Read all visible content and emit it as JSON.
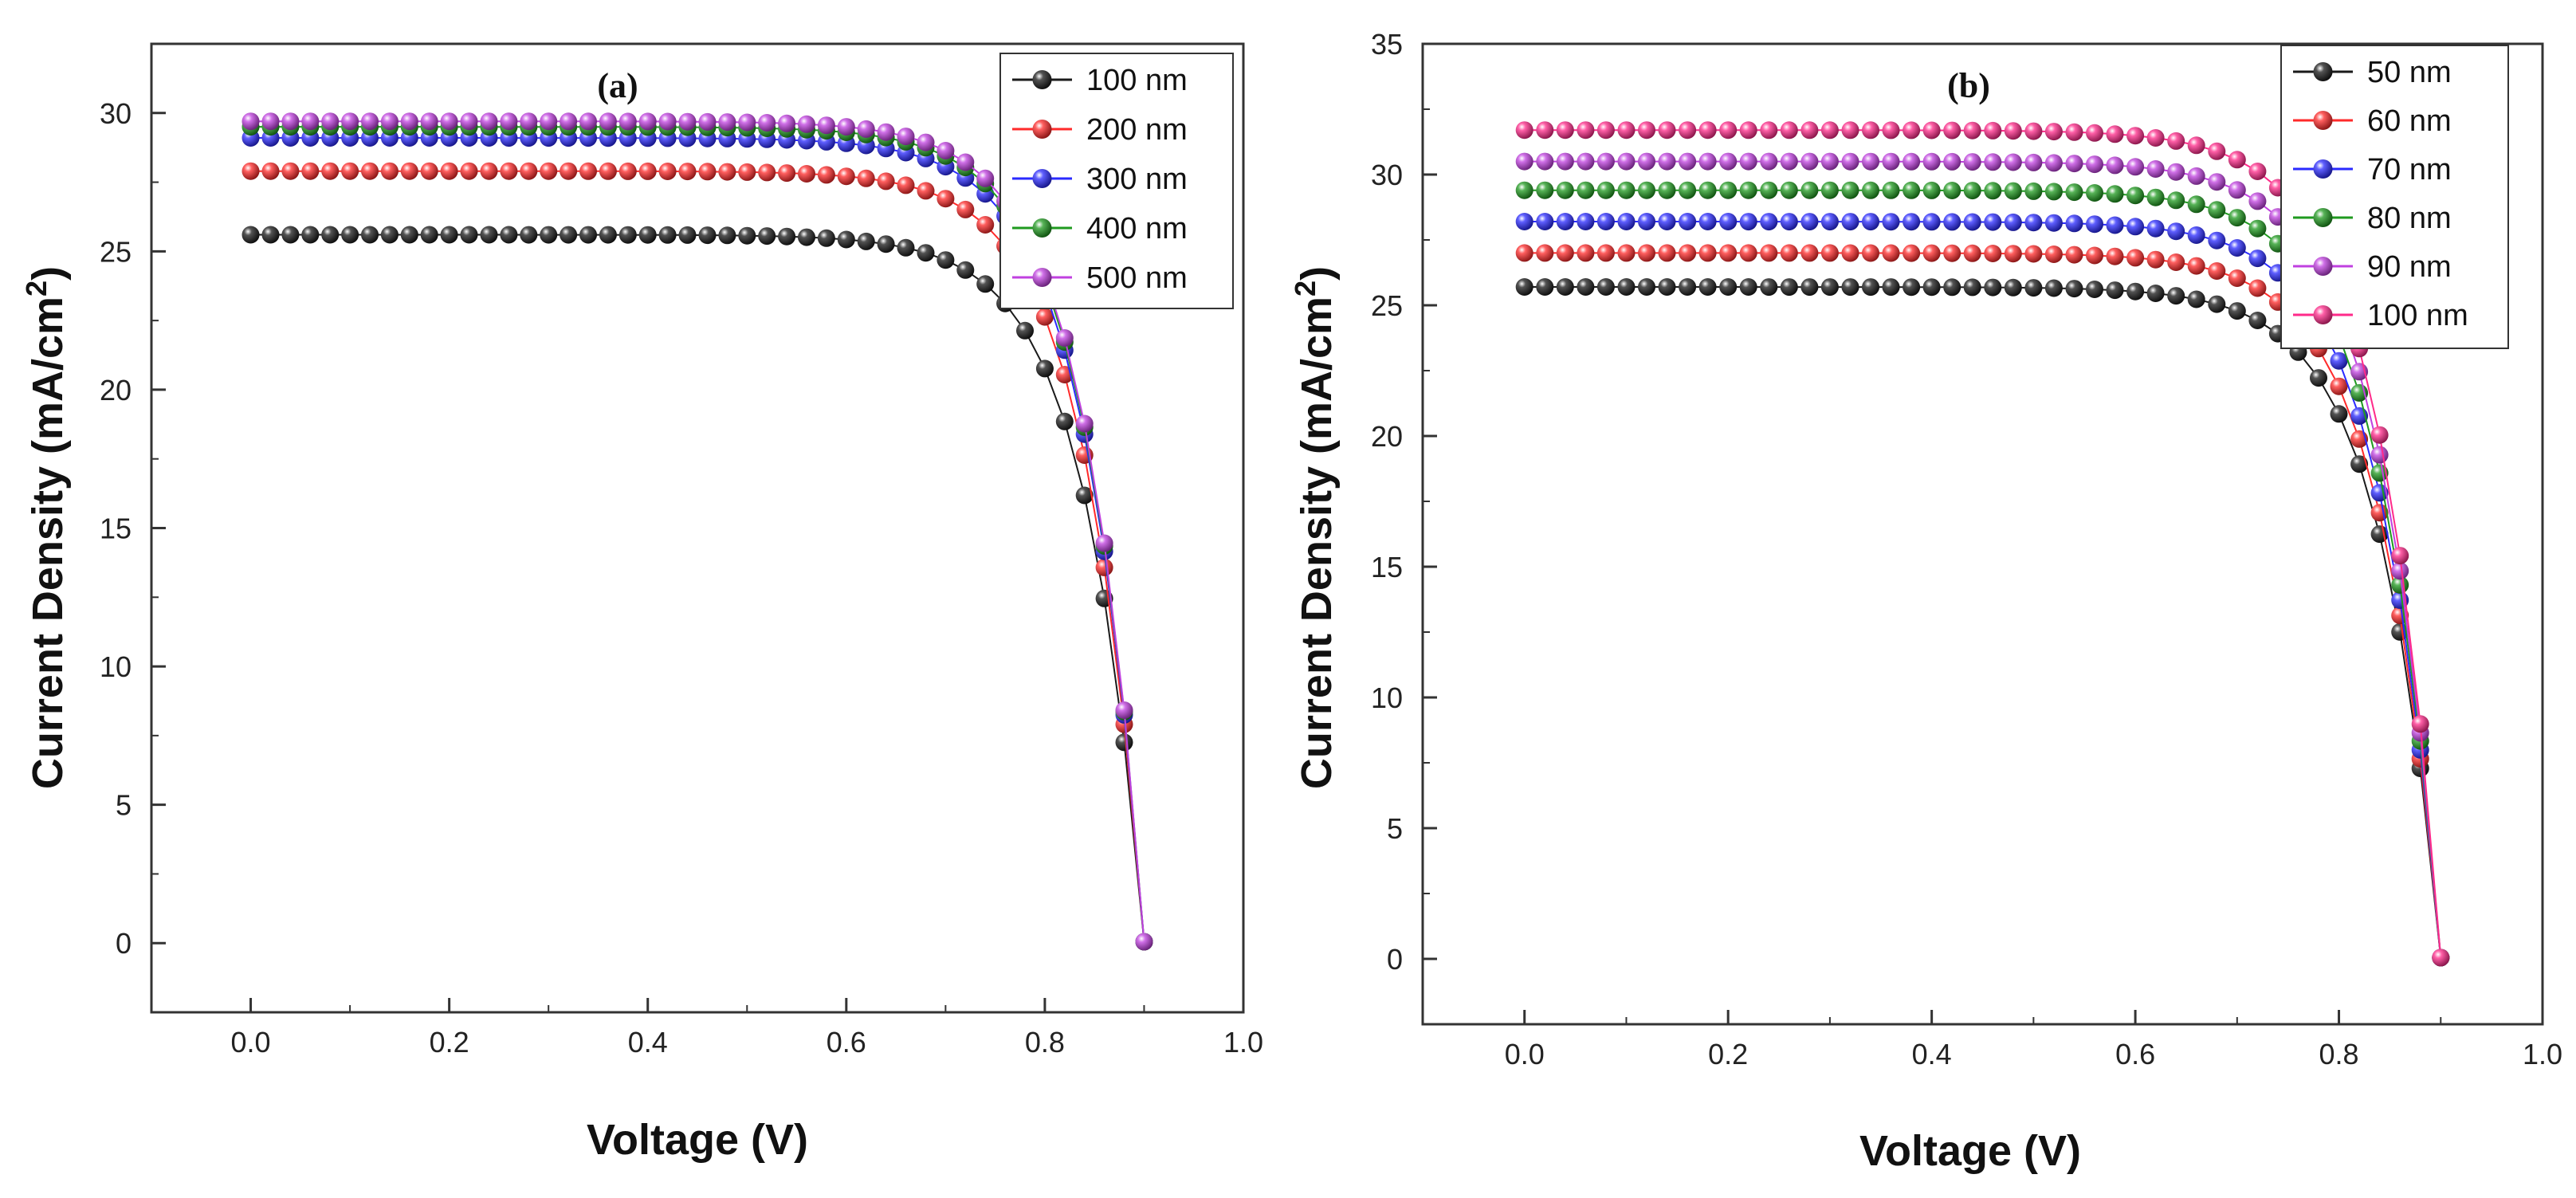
{
  "chart_data": [
    {
      "type": "scatter",
      "panel_label": "(a)",
      "xlabel": "Voltage (V)",
      "ylabel_main": "Current Density (mA/cm",
      "ylabel_sup": "2",
      "ylabel_end": ")",
      "xlim": [
        -0.1,
        1.0
      ],
      "ylim": [
        -2.5,
        32.5
      ],
      "xticks": [
        0.0,
        0.2,
        0.4,
        0.6,
        0.8,
        1.0
      ],
      "xtick_labels": [
        "0.0",
        "0.2",
        "0.4",
        "0.6",
        "0.8",
        "1.0"
      ],
      "yticks": [
        0,
        5,
        10,
        15,
        20,
        25,
        30
      ],
      "ytick_labels": [
        "0",
        "5",
        "10",
        "15",
        "20",
        "25",
        "30"
      ],
      "legend_position": "top-right",
      "voc": 0.9,
      "series": [
        {
          "name": "100 nm",
          "color": "#1a1a1a",
          "jsc": 25.6
        },
        {
          "name": "200 nm",
          "color": "#ff2a2a",
          "jsc": 27.9
        },
        {
          "name": "300 nm",
          "color": "#2a2aff",
          "jsc": 29.1
        },
        {
          "name": "400 nm",
          "color": "#1f9a1f",
          "jsc": 29.5
        },
        {
          "name": "500 nm",
          "color": "#c040e0",
          "jsc": 29.7
        }
      ]
    },
    {
      "type": "scatter",
      "panel_label": "(b)",
      "xlabel": "Voltage (V)",
      "ylabel_main": "Current Density (mA/cm",
      "ylabel_sup": "2",
      "ylabel_end": ")",
      "xlim": [
        -0.1,
        1.0
      ],
      "ylim": [
        -2.5,
        35
      ],
      "xticks": [
        0.0,
        0.2,
        0.4,
        0.6,
        0.8,
        1.0
      ],
      "xtick_labels": [
        "0.0",
        "0.2",
        "0.4",
        "0.6",
        "0.8",
        "1.0"
      ],
      "yticks": [
        0,
        5,
        10,
        15,
        20,
        25,
        30,
        35
      ],
      "ytick_labels": [
        "0",
        "5",
        "10",
        "15",
        "20",
        "25",
        "30",
        "35"
      ],
      "legend_position": "top-right",
      "voc": 0.9,
      "series": [
        {
          "name": "50 nm",
          "color": "#1a1a1a",
          "jsc": 25.7
        },
        {
          "name": "60 nm",
          "color": "#ff2a2a",
          "jsc": 27.0
        },
        {
          "name": "70 nm",
          "color": "#2a2aff",
          "jsc": 28.2
        },
        {
          "name": "80 nm",
          "color": "#1f9a1f",
          "jsc": 29.4
        },
        {
          "name": "90 nm",
          "color": "#c040e0",
          "jsc": 30.5
        },
        {
          "name": "100 nm",
          "color": "#ff2a8a",
          "jsc": 31.7
        }
      ]
    }
  ]
}
